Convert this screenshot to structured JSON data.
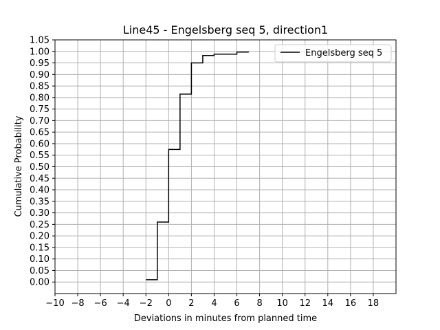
{
  "chart_data": {
    "type": "line",
    "step": "post",
    "title": "Line45 - Engelsberg seq 5, direction1",
    "xlabel": "Deviations in minutes from planned time",
    "ylabel": "Cumulative Probability",
    "xlim": [
      -10,
      20
    ],
    "ylim": [
      -0.05,
      1.05
    ],
    "grid": true,
    "legend_position": "top-right",
    "x_ticks": [
      "−10",
      "−8",
      "−6",
      "−4",
      "−2",
      "0",
      "2",
      "4",
      "6",
      "8",
      "10",
      "12",
      "14",
      "16",
      "18"
    ],
    "x_tick_values": [
      -10,
      -8,
      -6,
      -4,
      -2,
      0,
      2,
      4,
      6,
      8,
      10,
      12,
      14,
      16,
      18
    ],
    "y_ticks": [
      "0.00",
      "0.05",
      "0.10",
      "0.15",
      "0.20",
      "0.25",
      "0.30",
      "0.35",
      "0.40",
      "0.45",
      "0.50",
      "0.55",
      "0.60",
      "0.65",
      "0.70",
      "0.75",
      "0.80",
      "0.85",
      "0.90",
      "0.95",
      "1.00",
      "1.05"
    ],
    "y_tick_values": [
      0,
      0.05,
      0.1,
      0.15,
      0.2,
      0.25,
      0.3,
      0.35,
      0.4,
      0.45,
      0.5,
      0.55,
      0.6,
      0.65,
      0.7,
      0.75,
      0.8,
      0.85,
      0.9,
      0.95,
      1.0,
      1.05
    ],
    "series": [
      {
        "name": "Engelsberg seq 5",
        "color": "#000000",
        "x": [
          -2,
          -1,
          0,
          1,
          2,
          3,
          4,
          5,
          6,
          7
        ],
        "y": [
          0.01,
          0.26,
          0.575,
          0.815,
          0.95,
          0.982,
          0.988,
          0.988,
          0.997,
          1.0
        ]
      }
    ]
  }
}
